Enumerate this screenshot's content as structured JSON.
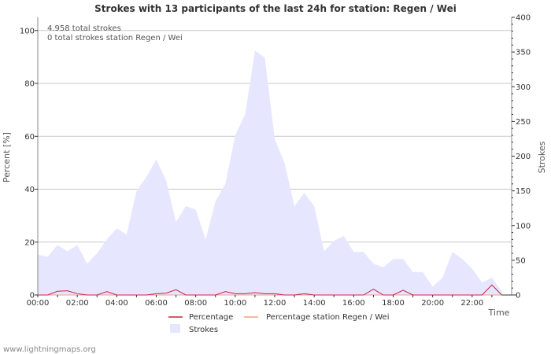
{
  "chart_data": {
    "type": "area",
    "title": "Strokes with 13 participants of the last 24h for station: Regen / Wei",
    "xlabel": "Time",
    "ylabel_left": "Percent   [%]",
    "ylabel_right": "Strokes",
    "x_range": [
      0,
      24
    ],
    "x_ticks": [
      0,
      2,
      4,
      6,
      8,
      10,
      12,
      14,
      16,
      18,
      20,
      22
    ],
    "x_tick_labels": [
      "00:00",
      "02:00",
      "04:00",
      "06:00",
      "08:00",
      "10:00",
      "12:00",
      "14:00",
      "16:00",
      "18:00",
      "20:00",
      "22:00"
    ],
    "y_left_range": [
      0,
      105
    ],
    "y_left_ticks": [
      0,
      20,
      40,
      60,
      80,
      100
    ],
    "y_left_tick_labels": [
      "0",
      "20",
      "40",
      "60",
      "80",
      "100"
    ],
    "y_right_range": [
      0,
      400
    ],
    "y_right_ticks": [
      0,
      50,
      100,
      150,
      200,
      250,
      300,
      350,
      400
    ],
    "y_right_tick_labels": [
      "0",
      "50",
      "100",
      "150",
      "200",
      "250",
      "300",
      "350",
      "400"
    ],
    "grid": true,
    "annotations": [
      "4.958 total strokes",
      "0 total strokes station Regen / Wei"
    ],
    "series": [
      {
        "name": "Strokes",
        "axis": "right",
        "color": "#e6e6ff",
        "x": [
          0,
          0.5,
          1,
          1.5,
          2,
          2.5,
          3,
          3.5,
          4,
          4.5,
          5,
          5.5,
          6,
          6.5,
          7,
          7.5,
          8,
          8.5,
          9,
          9.5,
          10,
          10.5,
          11,
          11.5,
          12,
          12.5,
          13,
          13.5,
          14,
          14.5,
          15,
          15.5,
          16,
          16.5,
          17,
          17.5,
          18,
          18.5,
          19,
          19.5,
          20,
          20.5,
          21,
          21.5,
          22,
          22.5,
          23,
          23.5
        ],
        "values": [
          58,
          55,
          72,
          63,
          72,
          45,
          60,
          80,
          96,
          87,
          150,
          170,
          195,
          165,
          105,
          128,
          123,
          80,
          135,
          160,
          230,
          260,
          352,
          342,
          225,
          190,
          128,
          147,
          128,
          63,
          78,
          85,
          62,
          62,
          45,
          40,
          52,
          52,
          33,
          33,
          12,
          25,
          62,
          52,
          38,
          18,
          25,
          5
        ]
      },
      {
        "name": "Percentage",
        "axis": "left",
        "color": "#cc2244",
        "x": [
          0,
          0.5,
          1,
          1.5,
          2,
          2.5,
          3,
          3.5,
          4,
          4.5,
          5,
          5.5,
          6,
          6.5,
          7,
          7.5,
          8,
          8.5,
          9,
          9.5,
          10,
          10.5,
          11,
          11.5,
          12,
          12.5,
          13,
          13.5,
          14,
          14.5,
          15,
          15.5,
          16,
          16.5,
          17,
          17.5,
          18,
          18.5,
          19,
          19.5,
          20,
          20.5,
          21,
          21.5,
          22,
          22.5,
          23,
          23.5
        ],
        "values": [
          0,
          0,
          1.4,
          1.6,
          0.5,
          0,
          0,
          1.3,
          0,
          0,
          0,
          0,
          0.5,
          0.7,
          2.0,
          0,
          0,
          0,
          0,
          1.3,
          0.5,
          0.5,
          0.9,
          0.5,
          0.5,
          0,
          0,
          0.5,
          0,
          0,
          0,
          0,
          0,
          0,
          2.2,
          0,
          0,
          1.8,
          0,
          0,
          0,
          0,
          0,
          0,
          0,
          0,
          3.8,
          0
        ]
      },
      {
        "name": "Percentage station Regen / Wei",
        "axis": "left",
        "color": "#f0a080",
        "x": [
          0,
          23.5
        ],
        "values": [
          0,
          0
        ]
      }
    ],
    "legend": [
      "Percentage",
      "Percentage station Regen / Wei",
      "Strokes"
    ]
  },
  "footer": {
    "credit": "www.lightningmaps.org"
  }
}
